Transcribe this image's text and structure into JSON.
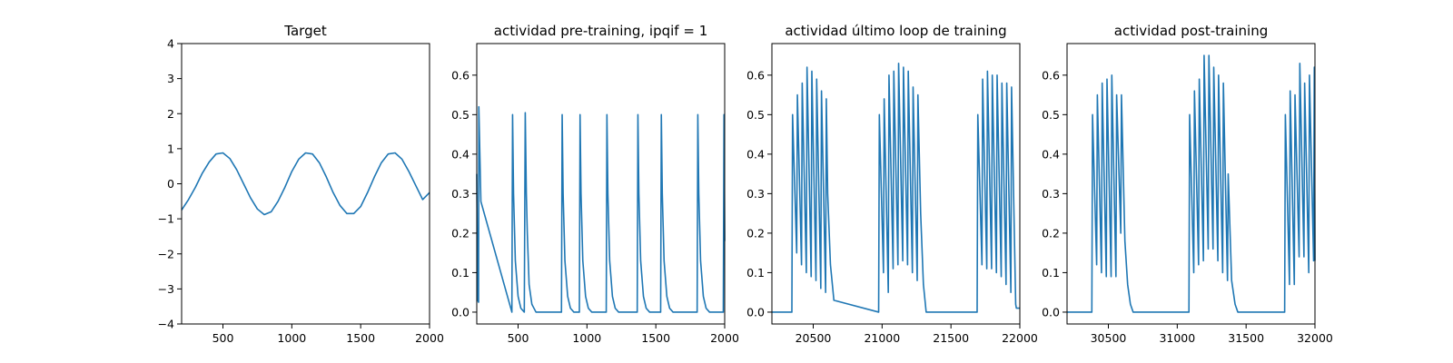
{
  "chart_data": [
    {
      "type": "line",
      "title": "Target",
      "xlabel": "",
      "ylabel": "",
      "xlim": [
        200,
        2000
      ],
      "ylim": [
        -4,
        4
      ],
      "xticks": [
        500,
        1000,
        1500,
        2000
      ],
      "yticks": [
        -4,
        -3,
        -2,
        -1,
        0,
        1,
        2,
        3,
        4
      ],
      "grid": false,
      "color": "#1f77b4",
      "series": [
        {
          "x": [
            200,
            250,
            300,
            350,
            400,
            450,
            500,
            550,
            600,
            650,
            700,
            750,
            800,
            850,
            900,
            950,
            1000,
            1050,
            1100,
            1150,
            1200,
            1250,
            1300,
            1350,
            1400,
            1450,
            1500,
            1550,
            1600,
            1650,
            1700,
            1750,
            1800,
            1850,
            1900,
            1950,
            2000
          ],
          "y": [
            -0.75,
            -0.45,
            -0.1,
            0.3,
            0.62,
            0.85,
            0.88,
            0.72,
            0.4,
            0.0,
            -0.4,
            -0.72,
            -0.88,
            -0.8,
            -0.5,
            -0.1,
            0.35,
            0.7,
            0.88,
            0.85,
            0.6,
            0.2,
            -0.25,
            -0.62,
            -0.85,
            -0.85,
            -0.65,
            -0.25,
            0.2,
            0.6,
            0.85,
            0.88,
            0.7,
            0.35,
            -0.05,
            -0.45,
            -0.25
          ]
        }
      ]
    },
    {
      "type": "line",
      "title": "actividad pre-training, ipqif = 1",
      "xlabel": "",
      "ylabel": "",
      "xlim": [
        200,
        2000
      ],
      "ylim": [
        -0.03,
        0.68
      ],
      "xticks": [
        500,
        1000,
        1500,
        2000
      ],
      "yticks": [
        0.0,
        0.1,
        0.2,
        0.3,
        0.4,
        0.5,
        0.6
      ],
      "grid": false,
      "color": "#1f77b4",
      "series": [
        {
          "x": [
            200,
            207,
            213,
            215,
            230,
            455,
            460,
            467,
            480,
            500,
            520,
            545,
            552,
            560,
            567,
            580,
            600,
            630,
            815,
            820,
            827,
            840,
            860,
            880,
            905,
            945,
            950,
            957,
            970,
            990,
            1010,
            1035,
            1140,
            1145,
            1152,
            1165,
            1185,
            1205,
            1230,
            1365,
            1370,
            1377,
            1390,
            1410,
            1430,
            1455,
            1535,
            1540,
            1547,
            1560,
            1580,
            1600,
            1625,
            1800,
            1805,
            1812,
            1825,
            1845,
            1865,
            1890,
            1990,
            1995,
            2000
          ],
          "y": [
            0.35,
            0.03,
            0.025,
            0.52,
            0.28,
            0.0,
            0.5,
            0.3,
            0.13,
            0.04,
            0.01,
            0.0,
            0.505,
            0.3,
            0.2,
            0.07,
            0.02,
            0.0,
            0.0,
            0.5,
            0.3,
            0.13,
            0.04,
            0.01,
            0.0,
            0.0,
            0.5,
            0.3,
            0.13,
            0.04,
            0.01,
            0.0,
            0.0,
            0.5,
            0.3,
            0.13,
            0.04,
            0.01,
            0.0,
            0.0,
            0.5,
            0.3,
            0.13,
            0.04,
            0.01,
            0.0,
            0.0,
            0.5,
            0.3,
            0.13,
            0.04,
            0.01,
            0.0,
            0.0,
            0.5,
            0.3,
            0.13,
            0.04,
            0.01,
            0.0,
            0.0,
            0.5,
            0.18
          ]
        }
      ]
    },
    {
      "type": "line",
      "title": "actividad último loop de training",
      "xlabel": "",
      "ylabel": "",
      "xlim": [
        20200,
        22000
      ],
      "ylim": [
        -0.03,
        0.68
      ],
      "xticks": [
        20500,
        21000,
        21500,
        22000
      ],
      "yticks": [
        0.0,
        0.1,
        0.2,
        0.3,
        0.4,
        0.5,
        0.6
      ],
      "grid": false,
      "color": "#1f77b4",
      "series": [
        {
          "x": [
            20200,
            20345,
            20350,
            20380,
            20385,
            20415,
            20420,
            20450,
            20455,
            20485,
            20490,
            20520,
            20525,
            20555,
            20560,
            20590,
            20595,
            20605,
            20625,
            20650,
            20975,
            20980,
            21010,
            21015,
            21045,
            21050,
            21080,
            21085,
            21115,
            21120,
            21150,
            21155,
            21185,
            21190,
            21220,
            21225,
            21255,
            21260,
            21280,
            21300,
            21320,
            21690,
            21695,
            21725,
            21730,
            21760,
            21765,
            21795,
            21800,
            21830,
            21835,
            21865,
            21870,
            21900,
            21905,
            21935,
            21940,
            21970,
            21975,
            22000
          ],
          "y": [
            0.0,
            0.0,
            0.5,
            0.15,
            0.55,
            0.12,
            0.58,
            0.1,
            0.62,
            0.09,
            0.61,
            0.08,
            0.59,
            0.06,
            0.56,
            0.05,
            0.54,
            0.3,
            0.12,
            0.03,
            0.0,
            0.5,
            0.1,
            0.54,
            0.05,
            0.6,
            0.11,
            0.61,
            0.12,
            0.63,
            0.13,
            0.62,
            0.12,
            0.61,
            0.1,
            0.57,
            0.08,
            0.55,
            0.25,
            0.07,
            0.0,
            0.0,
            0.5,
            0.12,
            0.59,
            0.11,
            0.61,
            0.11,
            0.6,
            0.1,
            0.6,
            0.09,
            0.58,
            0.07,
            0.58,
            0.05,
            0.57,
            0.02,
            0.01,
            0.01
          ]
        }
      ]
    },
    {
      "type": "line",
      "title": "actividad post-training",
      "xlabel": "",
      "ylabel": "",
      "xlim": [
        30200,
        32000
      ],
      "ylim": [
        -0.03,
        0.68
      ],
      "xticks": [
        30500,
        31000,
        31500,
        32000
      ],
      "yticks": [
        0.0,
        0.1,
        0.2,
        0.3,
        0.4,
        0.5,
        0.6
      ],
      "grid": false,
      "color": "#1f77b4",
      "series": [
        {
          "x": [
            30200,
            30380,
            30385,
            30415,
            30420,
            30450,
            30455,
            30485,
            30490,
            30520,
            30525,
            30555,
            30560,
            30590,
            30595,
            30620,
            30640,
            30660,
            30680,
            31085,
            31090,
            31120,
            31125,
            31155,
            31160,
            31190,
            31195,
            31225,
            31230,
            31260,
            31265,
            31295,
            31300,
            31330,
            31335,
            31365,
            31370,
            31395,
            31420,
            31440,
            31780,
            31785,
            31815,
            31820,
            31850,
            31855,
            31885,
            31890,
            31920,
            31925,
            31955,
            31960,
            31990,
            31995,
            32000
          ],
          "y": [
            0.0,
            0.0,
            0.5,
            0.12,
            0.55,
            0.1,
            0.58,
            0.09,
            0.59,
            0.09,
            0.6,
            0.09,
            0.55,
            0.2,
            0.55,
            0.18,
            0.07,
            0.02,
            0.0,
            0.0,
            0.5,
            0.1,
            0.56,
            0.12,
            0.59,
            0.13,
            0.65,
            0.16,
            0.65,
            0.16,
            0.62,
            0.13,
            0.6,
            0.1,
            0.58,
            0.08,
            0.35,
            0.08,
            0.02,
            0.0,
            0.0,
            0.5,
            0.07,
            0.56,
            0.07,
            0.55,
            0.14,
            0.63,
            0.14,
            0.58,
            0.1,
            0.6,
            0.13,
            0.62,
            0.13
          ]
        }
      ]
    }
  ]
}
